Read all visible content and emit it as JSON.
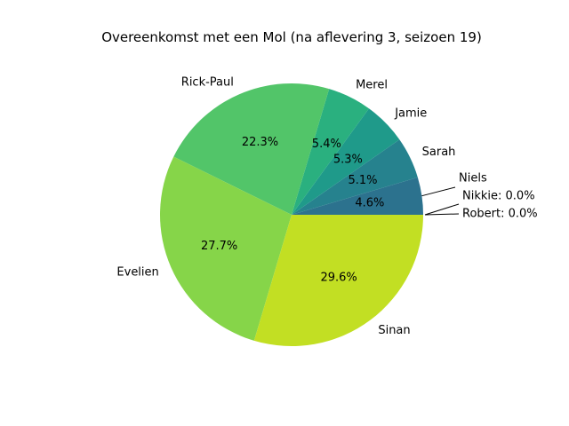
{
  "chart_data": {
    "type": "pie",
    "title": "Overeenkomst met een Mol (na aflevering 3, seizoen 19)",
    "slices": [
      {
        "label": "Niels",
        "value": 4.6,
        "color": "#2c728e",
        "pct_label": "4.6%"
      },
      {
        "label": "Sarah",
        "value": 5.1,
        "color": "#26828e",
        "pct_label": "5.1%"
      },
      {
        "label": "Jamie",
        "value": 5.3,
        "color": "#1f9a8a",
        "pct_label": "5.3%"
      },
      {
        "label": "Merel",
        "value": 5.4,
        "color": "#2ab07f",
        "pct_label": "5.4%"
      },
      {
        "label": "Rick-Paul",
        "value": 22.3,
        "color": "#52c569",
        "pct_label": "22.3%"
      },
      {
        "label": "Evelien",
        "value": 27.7,
        "color": "#86d549",
        "pct_label": "27.7%"
      },
      {
        "label": "Sinan",
        "value": 29.6,
        "color": "#c2df23",
        "pct_label": "29.6%"
      },
      {
        "label": "Nikkie",
        "value": 0.0,
        "color": "#3b528b",
        "pct_label": "0.0%"
      },
      {
        "label": "Robert",
        "value": 0.0,
        "color": "#440154",
        "pct_label": "0.0%"
      }
    ]
  }
}
